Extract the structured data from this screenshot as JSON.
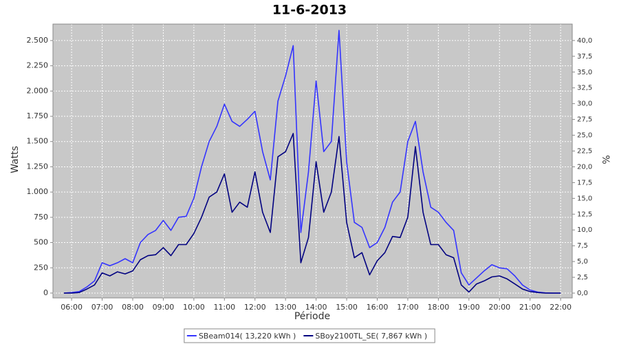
{
  "chart_data": {
    "type": "line",
    "title": "11-6-2013",
    "x_label": "Période",
    "y_label": "Watts",
    "y2_label": "%",
    "x": [
      5.75,
      6,
      6.25,
      6.5,
      6.75,
      7,
      7.25,
      7.5,
      7.75,
      8,
      8.25,
      8.5,
      8.75,
      9,
      9.25,
      9.5,
      9.75,
      10,
      10.25,
      10.5,
      10.75,
      11,
      11.25,
      11.5,
      11.75,
      12,
      12.25,
      12.5,
      12.75,
      13,
      13.25,
      13.5,
      13.75,
      14,
      14.25,
      14.5,
      14.75,
      15,
      15.25,
      15.5,
      15.75,
      16,
      16.25,
      16.5,
      16.75,
      17,
      17.25,
      17.5,
      17.75,
      18,
      18.25,
      18.5,
      18.75,
      19,
      19.25,
      19.5,
      19.75,
      20,
      20.25,
      20.5,
      20.75,
      21,
      21.25,
      21.5,
      21.75,
      22
    ],
    "series": [
      {
        "name": "SBeam014( 13,220 kWh )",
        "color": "#3333ff",
        "values": [
          0,
          5,
          15,
          60,
          120,
          300,
          270,
          300,
          340,
          300,
          500,
          580,
          620,
          720,
          620,
          750,
          760,
          940,
          1250,
          1500,
          1650,
          1870,
          1700,
          1650,
          1720,
          1800,
          1400,
          1120,
          1900,
          2150,
          2450,
          600,
          1200,
          2100,
          1400,
          1500,
          2600,
          1300,
          700,
          650,
          450,
          500,
          650,
          900,
          1000,
          1500,
          1700,
          1200,
          850,
          800,
          700,
          620,
          200,
          80,
          150,
          220,
          280,
          250,
          240,
          170,
          80,
          30,
          10,
          2,
          0,
          0
        ]
      },
      {
        "name": "SBoy2100TL_SE( 7,867 kWh )",
        "color": "#000080",
        "values": [
          0,
          0,
          5,
          40,
          80,
          200,
          170,
          210,
          190,
          220,
          330,
          370,
          380,
          450,
          370,
          480,
          480,
          590,
          750,
          950,
          1000,
          1180,
          800,
          900,
          850,
          1200,
          800,
          600,
          1350,
          1400,
          1580,
          300,
          550,
          1300,
          800,
          1000,
          1550,
          700,
          350,
          400,
          180,
          320,
          400,
          560,
          550,
          750,
          1450,
          800,
          480,
          480,
          380,
          350,
          80,
          10,
          90,
          120,
          160,
          170,
          140,
          90,
          40,
          15,
          5,
          0,
          0,
          0
        ]
      }
    ],
    "xlim": [
      5.39,
      22.38
    ],
    "xticks": [
      {
        "value": 6,
        "label": "06:00"
      },
      {
        "value": 7,
        "label": "07:00"
      },
      {
        "value": 8,
        "label": "08:00"
      },
      {
        "value": 9,
        "label": "09:00"
      },
      {
        "value": 10,
        "label": "10:00"
      },
      {
        "value": 11,
        "label": "11:00"
      },
      {
        "value": 12,
        "label": "12:00"
      },
      {
        "value": 13,
        "label": "13:00"
      },
      {
        "value": 14,
        "label": "14:00"
      },
      {
        "value": 15,
        "label": "15:00"
      },
      {
        "value": 16,
        "label": "16:00"
      },
      {
        "value": 17,
        "label": "17:00"
      },
      {
        "value": 18,
        "label": "18:00"
      },
      {
        "value": 19,
        "label": "19:00"
      },
      {
        "value": 20,
        "label": "20:00"
      },
      {
        "value": 21,
        "label": "21:00"
      },
      {
        "value": 22,
        "label": "22:00"
      }
    ],
    "ylim": [
      -48,
      2663
    ],
    "yticks": [
      0,
      250,
      500,
      750,
      {
        "value": 1000,
        "label": "1.000"
      },
      {
        "value": 1250,
        "label": "1.250"
      },
      {
        "value": 1500,
        "label": "1.500"
      },
      {
        "value": 1750,
        "label": "1.750"
      },
      {
        "value": 2000,
        "label": "2.000"
      },
      {
        "value": 2250,
        "label": "2.250"
      },
      {
        "value": 2500,
        "label": "2.500"
      }
    ],
    "y2lim": [
      -0.76,
      42.6
    ],
    "y2ticks": [
      {
        "value": 0,
        "label": "0,0"
      },
      {
        "value": 2.5,
        "label": "2,5"
      },
      {
        "value": 5,
        "label": "5,0"
      },
      {
        "value": 7.5,
        "label": "7,5"
      },
      {
        "value": 10,
        "label": "10,0"
      },
      {
        "value": 12.5,
        "label": "12,5"
      },
      {
        "value": 15,
        "label": "15,0"
      },
      {
        "value": 17.5,
        "label": "17,5"
      },
      {
        "value": 20,
        "label": "20,0"
      },
      {
        "value": 22.5,
        "label": "22,5"
      },
      {
        "value": 25,
        "label": "25,0"
      },
      {
        "value": 27.5,
        "label": "27,5"
      },
      {
        "value": 30,
        "label": "30,0"
      },
      {
        "value": 32.5,
        "label": "32,5"
      },
      {
        "value": 35,
        "label": "35,0"
      },
      {
        "value": 37.5,
        "label": "37,5"
      },
      {
        "value": 40,
        "label": "40,0"
      }
    ],
    "grid": true,
    "legend": "bottom",
    "plot_background": "#c8c8c8"
  }
}
